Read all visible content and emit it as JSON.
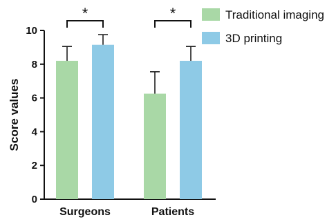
{
  "chart_data": {
    "type": "bar",
    "ylabel": "Score values",
    "ylim": [
      0,
      10
    ],
    "yticks": [
      0,
      2,
      4,
      6,
      8,
      10
    ],
    "categories": [
      "Surgeons",
      "Patients"
    ],
    "series": [
      {
        "name": "Traditional imaging",
        "color": "#a9d8a6",
        "values": [
          8.2,
          6.25
        ],
        "errors": [
          0.85,
          1.3
        ]
      },
      {
        "name": "3D printing",
        "color": "#8ecae6",
        "values": [
          9.15,
          8.2
        ],
        "errors": [
          0.6,
          0.85
        ]
      }
    ],
    "significance": [
      {
        "category": "Surgeons",
        "label": "*"
      },
      {
        "category": "Patients",
        "label": "*"
      }
    ],
    "legend_position": "top-right"
  }
}
